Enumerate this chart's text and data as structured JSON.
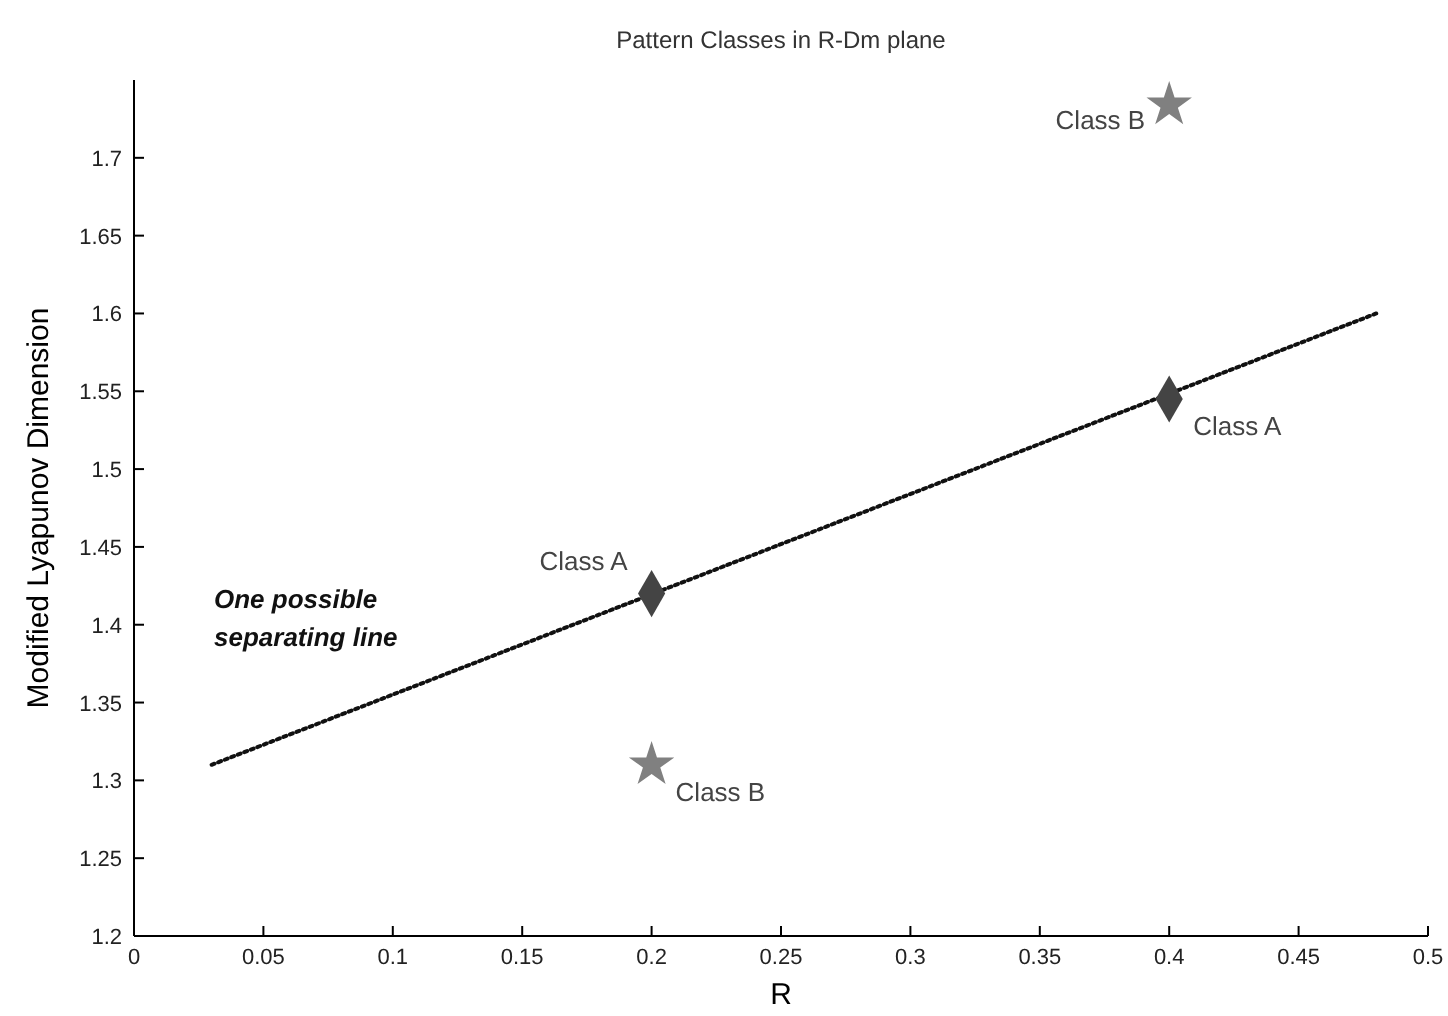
{
  "chart_data": {
    "type": "scatter",
    "title": "Pattern Classes in R-Dm plane",
    "xlabel": "R",
    "ylabel": "Modified Lyapunov Dimension",
    "xlim": [
      0,
      0.5
    ],
    "ylim": [
      1.2,
      1.75
    ],
    "xticks": [
      0,
      0.05,
      0.1,
      0.15,
      0.2,
      0.25,
      0.3,
      0.35,
      0.4,
      0.45,
      0.5
    ],
    "yticks": [
      1.2,
      1.25,
      1.3,
      1.35,
      1.4,
      1.45,
      1.5,
      1.55,
      1.6,
      1.65,
      1.7
    ],
    "grid": false,
    "annotations": [
      "One possible separating line"
    ],
    "series": [
      {
        "type": "line",
        "color": "#111111",
        "line_style": "dotted",
        "x": [
          0.03,
          0.48
        ],
        "values": [
          1.31,
          1.6
        ]
      },
      {
        "name": "Class A",
        "color": "#444444",
        "marker": "diamond",
        "x": [
          0.2,
          0.4
        ],
        "values": [
          1.42,
          1.545
        ]
      },
      {
        "name": "Class B",
        "color": "#808080",
        "marker": "star",
        "x": [
          0.2,
          0.4
        ],
        "values": [
          1.31,
          1.734
        ]
      }
    ]
  }
}
